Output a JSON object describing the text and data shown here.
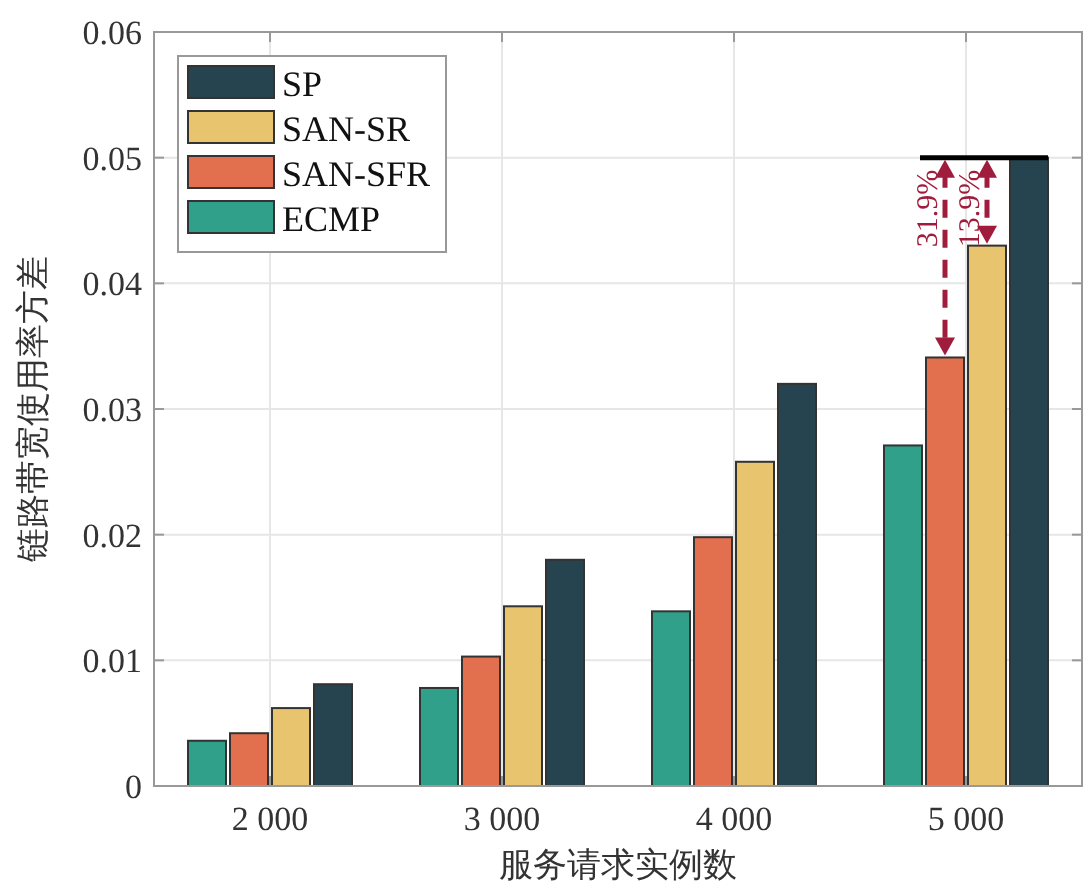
{
  "chart_data": {
    "type": "bar",
    "xlabel": "服务请求实例数",
    "ylabel": "链路带宽使用率方差",
    "categories": [
      "2 000",
      "3 000",
      "4 000",
      "5 000"
    ],
    "series": [
      {
        "name": "ECMP",
        "color": "#30a08b",
        "values": [
          0.0036,
          0.0078,
          0.0139,
          0.0271
        ]
      },
      {
        "name": "SAN-SFR",
        "color": "#e2704f",
        "values": [
          0.0042,
          0.0103,
          0.0198,
          0.0341
        ]
      },
      {
        "name": "SAN-SR",
        "color": "#e8c46e",
        "values": [
          0.0062,
          0.0143,
          0.0258,
          0.043
        ]
      },
      {
        "name": "SP",
        "color": "#25444f",
        "values": [
          0.0081,
          0.018,
          0.032,
          0.05
        ]
      }
    ],
    "ylim": [
      0,
      0.06
    ],
    "yticks": [
      0,
      0.01,
      0.02,
      0.03,
      0.04,
      0.05,
      0.06
    ],
    "ref_lines": [
      {
        "axis": "y",
        "value": 0.05,
        "color": "#000000"
      }
    ],
    "annotations": [
      "31.9%",
      "13.9%"
    ],
    "grid": true,
    "legend": "top left"
  }
}
